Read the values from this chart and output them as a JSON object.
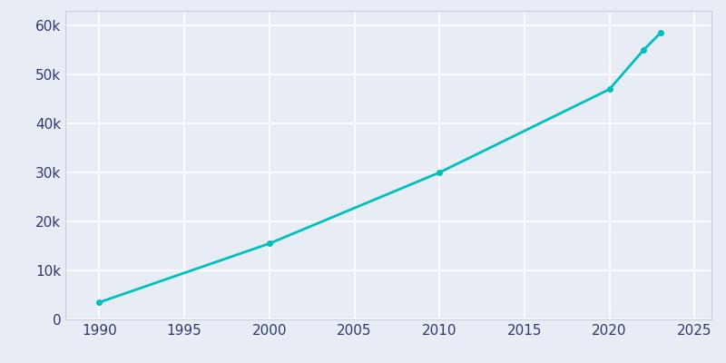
{
  "years": [
    1990,
    2000,
    2010,
    2020,
    2022,
    2023
  ],
  "population": [
    3500,
    15500,
    30000,
    47000,
    55000,
    58500
  ],
  "line_color": "#00BFBF",
  "marker": "o",
  "marker_size": 4,
  "background_color": "#e8edf5",
  "grid_color": "#ffffff",
  "xlim": [
    1988,
    2026
  ],
  "ylim": [
    0,
    63000
  ],
  "xticks": [
    1990,
    1995,
    2000,
    2005,
    2010,
    2015,
    2020,
    2025
  ],
  "yticks": [
    0,
    10000,
    20000,
    30000,
    40000,
    50000,
    60000
  ],
  "ytick_labels": [
    "0",
    "10k",
    "20k",
    "30k",
    "40k",
    "50k",
    "60k"
  ],
  "spine_color": "#c8d0de",
  "tick_label_color": "#2d3a6e",
  "line_width": 2.0,
  "tick_fontsize": 11
}
